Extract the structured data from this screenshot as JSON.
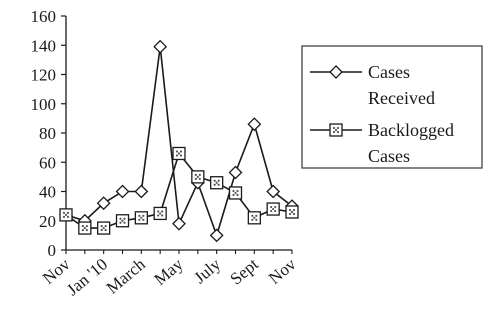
{
  "chart_data": {
    "type": "line",
    "title": "",
    "xlabel": "",
    "ylabel": "",
    "ylim": [
      0,
      160
    ],
    "yticks": [
      0,
      20,
      40,
      60,
      80,
      100,
      120,
      140,
      160
    ],
    "grid": false,
    "legend_position": "right",
    "categories": [
      "Nov",
      "",
      "Jan '10",
      "",
      "March",
      "",
      "May",
      "",
      "July",
      "",
      "Sept",
      "",
      "Nov"
    ],
    "series": [
      {
        "name_lines": [
          "Cases",
          "Received"
        ],
        "marker": "diamond",
        "values": [
          24,
          20,
          32,
          40,
          40,
          139,
          18,
          46,
          10,
          53,
          86,
          40,
          30
        ]
      },
      {
        "name_lines": [
          "Backlogged",
          "Cases"
        ],
        "marker": "square-dotted",
        "values": [
          24,
          15,
          15,
          20,
          22,
          25,
          66,
          50,
          46,
          39,
          22,
          28,
          26
        ]
      }
    ],
    "colors": {
      "line": "#1a1a1a",
      "marker_fill": "#ffffff",
      "dot_fill": "#555555"
    }
  }
}
